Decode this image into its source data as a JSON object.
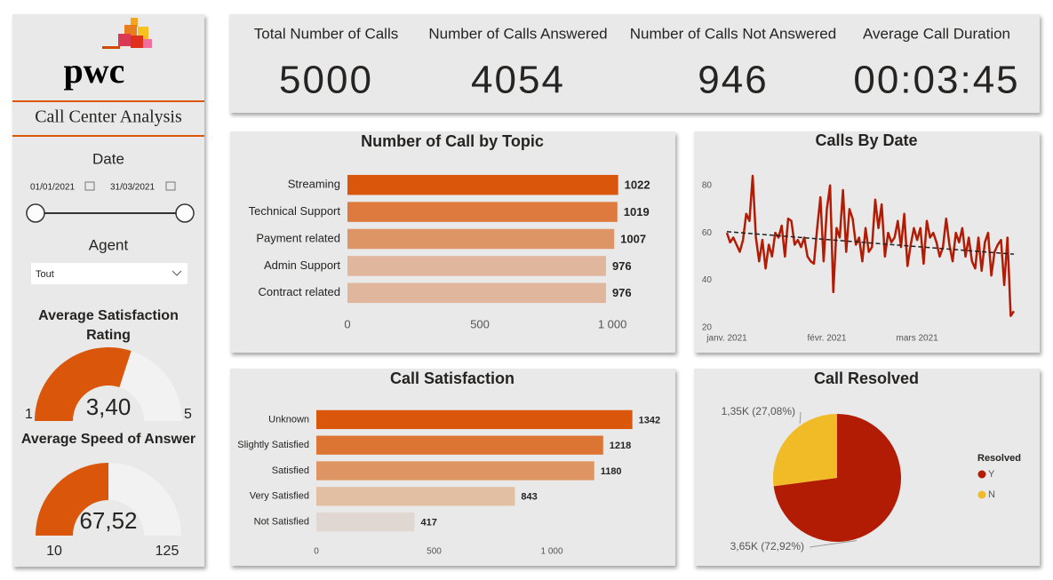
{
  "sidebar": {
    "logo": "pwc",
    "title": "Call Center Analysis",
    "date_label": "Date",
    "date_start": "01/01/2021",
    "date_end": "31/03/2021",
    "agent_label": "Agent",
    "agent_value": "Tout"
  },
  "kpis": [
    {
      "title": "Total Number of Calls",
      "value": 5000
    },
    {
      "title": "Number of Calls Answered",
      "value": 4054
    },
    {
      "title": "Number of Calls Not Answered",
      "value": 946
    },
    {
      "title": "Average Call Duration",
      "value": "00:03:45"
    }
  ],
  "chart_data": [
    {
      "type": "hbar",
      "title": "Number of Call by Topic",
      "categories": [
        "Streaming",
        "Technical Support",
        "Payment related",
        "Admin Support",
        "Contract related"
      ],
      "values": [
        1022,
        1019,
        1007,
        976,
        976
      ],
      "colors": [
        "#d9560a",
        "#de7a3e",
        "#dd9566",
        "#e0b79d",
        "#e0b79d"
      ],
      "xlim": [
        0,
        1050
      ],
      "xticks": [
        0,
        500,
        {
          "value": 1000,
          "label": "1 000"
        }
      ]
    },
    {
      "type": "line",
      "title": "Calls By Date",
      "categories": [
        "janv. 2021",
        null,
        null,
        null,
        null,
        null,
        null,
        null,
        null,
        null,
        null,
        null,
        null,
        null,
        null,
        null,
        null,
        null,
        null,
        null,
        null,
        null,
        null,
        null,
        null,
        null,
        null,
        null,
        null,
        null,
        null,
        "févr. 2021",
        null,
        null,
        null,
        null,
        null,
        null,
        null,
        null,
        null,
        null,
        null,
        null,
        null,
        null,
        null,
        null,
        null,
        null,
        null,
        null,
        null,
        null,
        null,
        null,
        null,
        null,
        null,
        "mars 2021",
        null,
        null,
        null,
        null,
        null,
        null,
        null,
        null,
        null,
        null,
        null,
        null,
        null,
        null,
        null,
        null,
        null,
        null,
        null,
        null,
        null,
        null,
        null,
        null,
        null,
        null,
        null,
        null,
        null,
        null
      ],
      "values": [
        60,
        56,
        58,
        55,
        52,
        57,
        68,
        65,
        84,
        58,
        48,
        57,
        45,
        55,
        50,
        60,
        58,
        63,
        50,
        66,
        65,
        55,
        57,
        54,
        58,
        50,
        48,
        47,
        62,
        75,
        48,
        70,
        80,
        35,
        62,
        58,
        78,
        52,
        70,
        66,
        55,
        58,
        48,
        62,
        52,
        54,
        74,
        62,
        72,
        50,
        60,
        56,
        58,
        65,
        54,
        68,
        46,
        55,
        62,
        57,
        62,
        47,
        65,
        58,
        60,
        56,
        50,
        54,
        66,
        55,
        48,
        60,
        56,
        62,
        50,
        58,
        48,
        45,
        58,
        44,
        56,
        60,
        42,
        52,
        55,
        57,
        38,
        58,
        25,
        27
      ],
      "color": "#b21c05",
      "trendline": [
        60.5,
        51
      ],
      "ylim": [
        20,
        87
      ],
      "yticks": [
        20,
        40,
        60,
        80
      ]
    },
    {
      "type": "hbar",
      "title": "Call Satisfaction",
      "categories": [
        "Unknown",
        "Slightly Satisfied",
        "Satisfied",
        "Very Satisfied",
        "Not Satisfied"
      ],
      "values": [
        1342,
        1218,
        1180,
        843,
        417
      ],
      "colors": [
        "#d9560a",
        "#dc7433",
        "#de9563",
        "#e2bea3",
        "#e0d7d2"
      ],
      "xlim": [
        0,
        1400
      ],
      "xticks": [
        0,
        500,
        {
          "value": 1000,
          "label": "1 000"
        }
      ]
    },
    {
      "type": "pie",
      "title": "Call Resolved",
      "legend_title": "Resolved",
      "categories": [
        "Y",
        "N"
      ],
      "values": [
        72.92,
        27.08
      ],
      "value_labels": [
        "3,65K (72,92%)",
        "1,35K (27,08%)"
      ],
      "colors": [
        "#b21c05",
        "#f0bb26"
      ]
    },
    {
      "type": "gauge",
      "title": "Average Satisfaction Rating",
      "value": 3.4,
      "value_label": "3,40",
      "min": 1,
      "max": 5,
      "color": "#d9560a"
    },
    {
      "type": "gauge",
      "title": "Average Speed of Answer",
      "value": 67.52,
      "value_label": "67,52",
      "min": 10,
      "max": 125,
      "color": "#d9560a"
    }
  ]
}
